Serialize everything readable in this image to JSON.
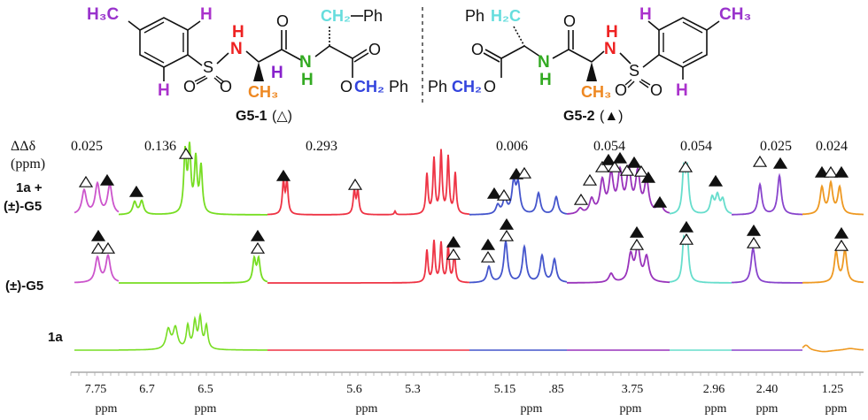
{
  "structures": {
    "left": {
      "caption": "G5-1",
      "caption_marker": "(△)",
      "groups": {
        "methyl": "H₃C",
        "h_top": "H",
        "h_bottom": "H",
        "so2_s": "S",
        "so2_o1": "O",
        "so2_o2": "O",
        "nh": "H",
        "nh_n": "N",
        "ch3": "CH₃",
        "alpha_h": "H",
        "amide_o": "O",
        "amide_nh_n": "N",
        "amide_nh_h": "H",
        "ch2ph_ch2": "CH₂",
        "ch2ph_ph": "Ph",
        "ester_o": "O",
        "ester_oc": "O",
        "ester_ch2": "CH₂",
        "ester_ph": "Ph"
      }
    },
    "right": {
      "caption": "G5-2",
      "caption_marker": "(▲)",
      "groups": {
        "ph": "Ph",
        "h2c": "H₂C",
        "ester_o": "O",
        "ester_ph": "Ph",
        "ester_ch2": "CH₂",
        "ester_oc": "O",
        "amide_n": "N",
        "amide_h": "H",
        "amide_o": "O",
        "nh_n": "N",
        "nh_h": "H",
        "ch3": "CH₃",
        "so2_s": "S",
        "so2_o1": "O",
        "so2_o2": "O",
        "h_top": "H",
        "h_bottom": "H",
        "methyl": "CH₃"
      }
    }
  },
  "delta_header": {
    "line1": "ΔΔδ",
    "line2": "(ppm)"
  },
  "ddelta_values": [
    "0.025",
    "0.136",
    "0.293",
    "0.006",
    "0.054",
    "0.054",
    "0.025",
    "0.024"
  ],
  "row_labels": {
    "top_line1": "1a +",
    "top_line2": "(±)-G5",
    "middle": "(±)-G5",
    "bottom": "1a"
  },
  "axis_ticks": [
    "7.75",
    "6.7",
    "6.5",
    "5.6",
    "5.3",
    "5.15",
    ".85",
    "3.75",
    "2.96",
    "2.40",
    "1.25"
  ],
  "axis_unit": "ppm",
  "colors": {
    "proton_aromatic": "#cc55cc",
    "proton_nh": "#77dd22",
    "proton_alpha": "#ee3344",
    "proton_ester_ch2": "#4455cc",
    "proton_ch2ph": "#9933bb",
    "proton_cyan": "#66ddcc",
    "proton_methyl_tol": "#8844cc",
    "proton_methyl_ala": "#ee9922",
    "nh_label": "#ee2222",
    "amide_label": "#33aa22",
    "ch2_label": "#66dddd",
    "och2_label": "#3344dd",
    "ch3_label": "#ee8822",
    "alpha_h_label": "#8822cc",
    "aryl_h_label": "#aa33cc",
    "tol_methyl_label": "#9933cc"
  },
  "markers": {
    "open": "△",
    "filled": "▲"
  }
}
